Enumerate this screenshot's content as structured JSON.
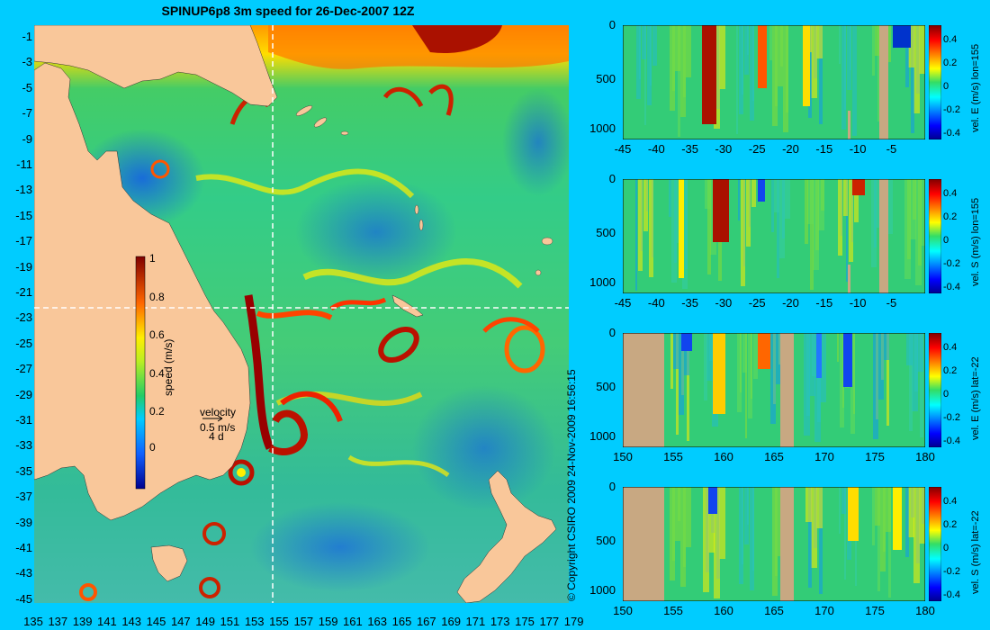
{
  "title": "SPINUP6p8 3m speed for 26-Dec-2007 12Z",
  "copyright": "© Copyright CSIRO 2009   24-Nov-2009 16:56:15",
  "colors": {
    "background": "#00ccff",
    "land": "#f9c79a",
    "section_land": "#c8a882",
    "crosshair": "#ffffff"
  },
  "map": {
    "lon_labels": [
      "135",
      "137",
      "139",
      "141",
      "143",
      "145",
      "147",
      "149",
      "151",
      "153",
      "155",
      "157",
      "159",
      "161",
      "163",
      "165",
      "167",
      "169",
      "171",
      "173",
      "175",
      "177",
      "179"
    ],
    "lat_labels": [
      "-1",
      "-3",
      "-5",
      "-7",
      "-9",
      "-11",
      "-13",
      "-15",
      "-17",
      "-19",
      "-21",
      "-23",
      "-25",
      "-27",
      "-29",
      "-31",
      "-33",
      "-35",
      "-37",
      "-39",
      "-41",
      "-43",
      "-45"
    ],
    "crosshair": {
      "lon": 155,
      "lat": -22
    },
    "colorbar": {
      "label": "speed (m/s)",
      "ticks": [
        "1",
        "0.8",
        "0.6",
        "0.4",
        "0.2",
        "0"
      ]
    },
    "velocity_legend": {
      "title": "velocity",
      "speed": "0.5 m/s",
      "duration": "4 d"
    }
  },
  "sections": [
    {
      "label": "vel. E (m/s) lon=155",
      "x_ticks": [
        "-45",
        "-40",
        "-35",
        "-30",
        "-25",
        "-20",
        "-15",
        "-10",
        "-5"
      ],
      "y_ticks": [
        "0",
        "500",
        "1000"
      ],
      "c_ticks": [
        "0.4",
        "0.2",
        "0",
        "-0.2",
        "-0.4"
      ]
    },
    {
      "label": "vel. S (m/s) lon=155",
      "x_ticks": [
        "-45",
        "-40",
        "-35",
        "-30",
        "-25",
        "-20",
        "-15",
        "-10",
        "-5"
      ],
      "y_ticks": [
        "0",
        "500",
        "1000"
      ],
      "c_ticks": [
        "0.4",
        "0.2",
        "0",
        "-0.2",
        "-0.4"
      ]
    },
    {
      "label": "vel. E (m/s) lat=-22",
      "x_ticks": [
        "150",
        "155",
        "160",
        "165",
        "170",
        "175",
        "180"
      ],
      "y_ticks": [
        "0",
        "500",
        "1000"
      ],
      "c_ticks": [
        "0.4",
        "0.2",
        "0",
        "-0.2",
        "-0.4"
      ]
    },
    {
      "label": "vel. S (m/s) lat=-22",
      "x_ticks": [
        "150",
        "155",
        "160",
        "165",
        "170",
        "175",
        "180"
      ],
      "y_ticks": [
        "0",
        "500",
        "1000"
      ],
      "c_ticks": [
        "0.4",
        "0.2",
        "0",
        "-0.2",
        "-0.4"
      ]
    }
  ]
}
